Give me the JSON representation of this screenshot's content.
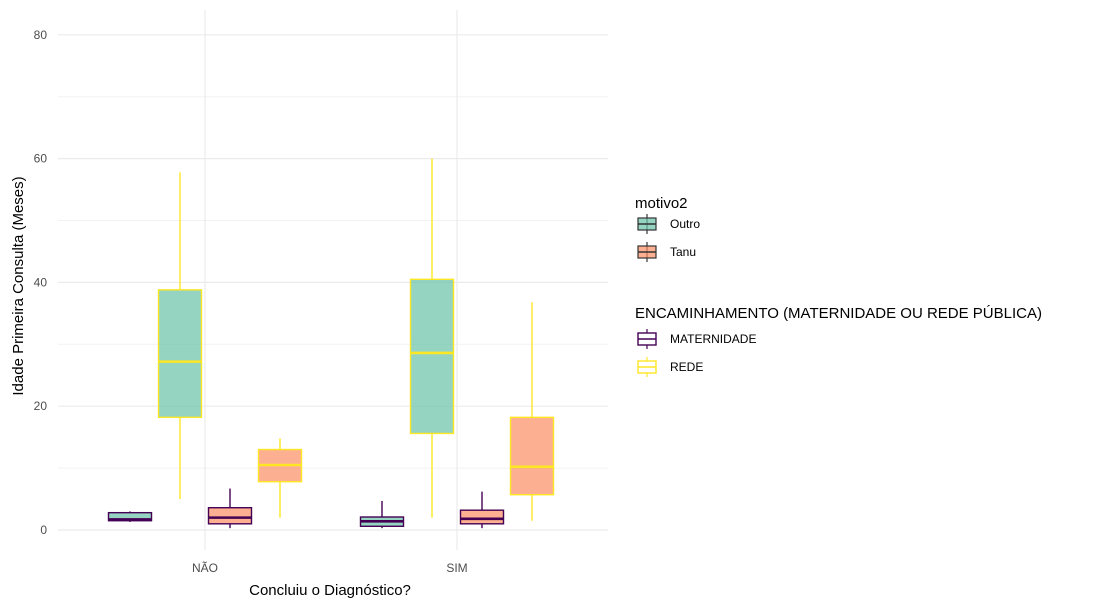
{
  "chart_data": {
    "type": "boxplot",
    "title": "",
    "xlabel": "Concluiu o Diagnóstico?",
    "ylabel": "Idade Primeira Consulta (Meses)",
    "ylim": [
      -2,
      84
    ],
    "yticks": [
      0,
      20,
      40,
      60,
      80
    ],
    "categories": [
      "NÃO",
      "SIM"
    ],
    "grid": true,
    "legend_position": "right",
    "fill_legend": {
      "title": "motivo2",
      "items": [
        {
          "label": "Outro",
          "color": "#66c2a5"
        },
        {
          "label": "Tanu",
          "color": "#fc8d62"
        }
      ]
    },
    "color_legend": {
      "title": "ENCAMINHAMENTO (MATERNIDADE OU REDE PÚBLICA)",
      "items": [
        {
          "label": "MATERNIDADE",
          "color": "#440154"
        },
        {
          "label": "REDE",
          "color": "#fde725"
        }
      ]
    },
    "boxes": [
      {
        "category": "NÃO",
        "motivo2": "Outro",
        "encaminhamento": "MATERNIDADE",
        "min": 1.3,
        "q1": 1.5,
        "median": 1.7,
        "q3": 2.8,
        "max": 3.0
      },
      {
        "category": "NÃO",
        "motivo2": "Outro",
        "encaminhamento": "REDE",
        "min": 5.0,
        "q1": 18.2,
        "median": 27.2,
        "q3": 38.8,
        "max": 57.8
      },
      {
        "category": "NÃO",
        "motivo2": "Tanu",
        "encaminhamento": "MATERNIDADE",
        "min": 0.3,
        "q1": 1.0,
        "median": 2.0,
        "q3": 3.6,
        "max": 6.7
      },
      {
        "category": "NÃO",
        "motivo2": "Tanu",
        "encaminhamento": "REDE",
        "min": 2.0,
        "q1": 7.8,
        "median": 10.5,
        "q3": 13.0,
        "max": 14.8
      },
      {
        "category": "SIM",
        "motivo2": "Outro",
        "encaminhamento": "MATERNIDADE",
        "min": 0.3,
        "q1": 0.6,
        "median": 1.4,
        "q3": 2.1,
        "max": 4.7
      },
      {
        "category": "SIM",
        "motivo2": "Outro",
        "encaminhamento": "REDE",
        "min": 2.0,
        "q1": 15.6,
        "median": 28.6,
        "q3": 40.5,
        "max": 60.0
      },
      {
        "category": "SIM",
        "motivo2": "Tanu",
        "encaminhamento": "MATERNIDADE",
        "min": 0.3,
        "q1": 1.0,
        "median": 1.8,
        "q3": 3.2,
        "max": 6.2
      },
      {
        "category": "SIM",
        "motivo2": "Tanu",
        "encaminhamento": "REDE",
        "min": 1.5,
        "q1": 5.7,
        "median": 10.2,
        "q3": 18.2,
        "max": 36.8
      }
    ]
  }
}
